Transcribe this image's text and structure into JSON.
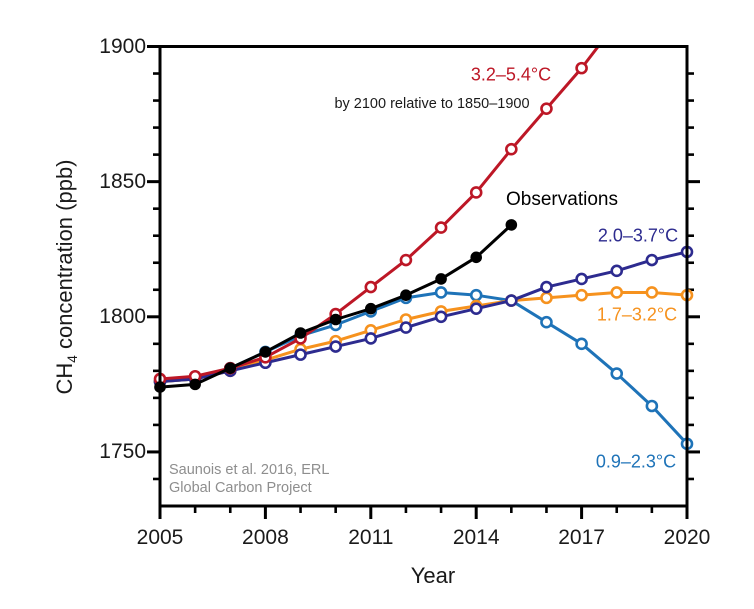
{
  "figure": {
    "background": "#ffffff",
    "text_color": "#1a1a1a",
    "attribution_color": "#8e8e8e"
  },
  "chart_data": {
    "type": "line",
    "title": "",
    "xlabel": "Year",
    "ylabel": {
      "prefix": "CH",
      "subscript": "4",
      "suffix": " concentration (ppb)"
    },
    "xlim": [
      2005,
      2020
    ],
    "ylim": [
      1730,
      1900
    ],
    "grid": false,
    "legend_position": "inline-annotations",
    "x_major_ticks": [
      2005,
      2008,
      2011,
      2014,
      2017,
      2020
    ],
    "x_minor_step": 1,
    "y_major_ticks": [
      1750,
      1800,
      1850,
      1900
    ],
    "y_minor_step": 10,
    "series": [
      {
        "name": "0.9–2.3°C",
        "color": "#1e73b8",
        "marker": "open-circle",
        "x": [
          2005,
          2006,
          2007,
          2008,
          2009,
          2010,
          2011,
          2012,
          2013,
          2014,
          2015,
          2016,
          2017,
          2018,
          2019,
          2020
        ],
        "values": [
          1776,
          1777,
          1781,
          1787,
          1793,
          1797,
          1802,
          1807,
          1809,
          1808,
          1806,
          1798,
          1790,
          1779,
          1767,
          1753
        ]
      },
      {
        "name": "1.7–3.2°C",
        "color": "#f6921e",
        "marker": "open-circle",
        "x": [
          2005,
          2006,
          2007,
          2008,
          2009,
          2010,
          2011,
          2012,
          2013,
          2014,
          2015,
          2016,
          2017,
          2018,
          2019,
          2020
        ],
        "values": [
          1776,
          1777,
          1780,
          1784,
          1788,
          1791,
          1795,
          1799,
          1802,
          1804,
          1806,
          1807,
          1808,
          1809,
          1809,
          1808
        ]
      },
      {
        "name": "2.0–3.7°C",
        "color": "#2d2b8f",
        "marker": "open-circle",
        "x": [
          2005,
          2006,
          2007,
          2008,
          2009,
          2010,
          2011,
          2012,
          2013,
          2014,
          2015,
          2016,
          2017,
          2018,
          2019,
          2020
        ],
        "values": [
          1776,
          1777,
          1780,
          1783,
          1786,
          1789,
          1792,
          1796,
          1800,
          1803,
          1806,
          1811,
          1814,
          1817,
          1821,
          1824
        ]
      },
      {
        "name": "3.2–5.4°C",
        "color": "#bd1726",
        "marker": "open-circle",
        "clip": true,
        "x": [
          2005,
          2006,
          2007,
          2008,
          2009,
          2010,
          2011,
          2012,
          2013,
          2014,
          2015,
          2016,
          2017,
          2018
        ],
        "values": [
          1777,
          1778,
          1781,
          1785,
          1792,
          1801,
          1811,
          1821,
          1833,
          1846,
          1862,
          1877,
          1892,
          1909
        ]
      },
      {
        "name": "Observations",
        "color": "#000000",
        "marker": "filled-circle",
        "x": [
          2005,
          2006,
          2007,
          2008,
          2009,
          2010,
          2011,
          2012,
          2013,
          2014,
          2015
        ],
        "values": [
          1774,
          1775,
          1781,
          1787,
          1794,
          1799,
          1803,
          1808,
          1814,
          1822,
          1834
        ]
      }
    ],
    "annotations": {
      "scenario_high": {
        "text": "3.2–5.4°C",
        "color": "#bd1726"
      },
      "subtitle": {
        "text": "by 2100 relative to 1850–1900",
        "color": "#1a1a1a"
      },
      "observations": {
        "text": "Observations",
        "color": "#000000"
      },
      "scenario_mid_high": {
        "text": "2.0–3.7°C",
        "color": "#2d2b8f"
      },
      "scenario_mid": {
        "text": "1.7–3.2°C",
        "color": "#f6921e"
      },
      "scenario_low": {
        "text": "0.9–2.3°C",
        "color": "#1e73b8"
      },
      "attribution_line1": "Saunois et al. 2016, ERL",
      "attribution_line2": "Global Carbon Project"
    }
  }
}
